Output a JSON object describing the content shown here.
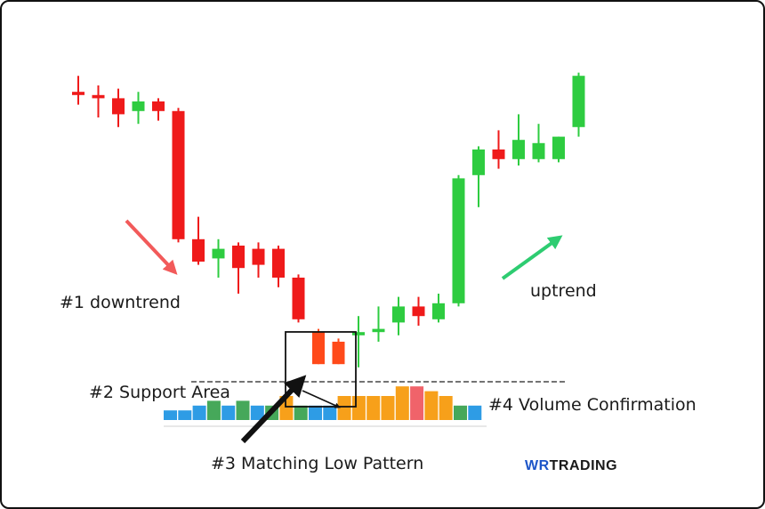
{
  "chart_data": {
    "type": "candlestick",
    "title": "",
    "xlabel": "",
    "ylabel": "",
    "ylim": [
      0,
      100
    ],
    "grid": false,
    "colors": {
      "bull": "#2ecc40",
      "bear": "#ef1a1a",
      "low_pattern": "#ff4a1a"
    },
    "candles": [
      {
        "o": 88,
        "h": 93,
        "l": 84,
        "c": 87
      },
      {
        "o": 87,
        "h": 90,
        "l": 80,
        "c": 86
      },
      {
        "o": 86,
        "h": 89,
        "l": 77,
        "c": 81
      },
      {
        "o": 82,
        "h": 88,
        "l": 78,
        "c": 85
      },
      {
        "o": 85,
        "h": 86,
        "l": 79,
        "c": 82
      },
      {
        "o": 82,
        "h": 83,
        "l": 41,
        "c": 42
      },
      {
        "o": 42,
        "h": 49,
        "l": 34,
        "c": 35
      },
      {
        "o": 36,
        "h": 42,
        "l": 30,
        "c": 39
      },
      {
        "o": 40,
        "h": 41,
        "l": 25,
        "c": 33
      },
      {
        "o": 39,
        "h": 41,
        "l": 30,
        "c": 34
      },
      {
        "o": 39,
        "h": 40,
        "l": 27,
        "c": 30
      },
      {
        "o": 30,
        "h": 31,
        "l": 16,
        "c": 17
      },
      {
        "o": 13,
        "h": 14,
        "l": 3,
        "c": 3
      },
      {
        "o": 10,
        "h": 11,
        "l": 3,
        "c": 3
      },
      {
        "o": 12,
        "h": 18,
        "l": 2,
        "c": 13
      },
      {
        "o": 13,
        "h": 21,
        "l": 10,
        "c": 14
      },
      {
        "o": 16,
        "h": 24,
        "l": 12,
        "c": 21
      },
      {
        "o": 21,
        "h": 24,
        "l": 15,
        "c": 18
      },
      {
        "o": 17,
        "h": 25,
        "l": 16,
        "c": 22
      },
      {
        "o": 22,
        "h": 62,
        "l": 21,
        "c": 61
      },
      {
        "o": 62,
        "h": 71,
        "l": 52,
        "c": 70
      },
      {
        "o": 70,
        "h": 76,
        "l": 64,
        "c": 67
      },
      {
        "o": 67,
        "h": 81,
        "l": 65,
        "c": 73
      },
      {
        "o": 67,
        "h": 78,
        "l": 66,
        "c": 72
      },
      {
        "o": 67,
        "h": 74,
        "l": 66,
        "c": 74
      },
      {
        "o": 77,
        "h": 94,
        "l": 74,
        "c": 93
      }
    ],
    "volume": [
      {
        "v": 2,
        "c": "#2e9ce5"
      },
      {
        "v": 2,
        "c": "#2e9ce5"
      },
      {
        "v": 3,
        "c": "#2e9ce5"
      },
      {
        "v": 4,
        "c": "#46a85a"
      },
      {
        "v": 3,
        "c": "#2e9ce5"
      },
      {
        "v": 4,
        "c": "#46a85a"
      },
      {
        "v": 3,
        "c": "#2e9ce5"
      },
      {
        "v": 3,
        "c": "#46a85a"
      },
      {
        "v": 5,
        "c": "#f7a01a"
      },
      {
        "v": 3,
        "c": "#46a85a"
      },
      {
        "v": 3,
        "c": "#2e9ce5"
      },
      {
        "v": 3,
        "c": "#2e9ce5"
      },
      {
        "v": 5,
        "c": "#f7a01a"
      },
      {
        "v": 5,
        "c": "#f7a01a"
      },
      {
        "v": 5,
        "c": "#f7a01a"
      },
      {
        "v": 5,
        "c": "#f7a01a"
      },
      {
        "v": 7,
        "c": "#f7a01a"
      },
      {
        "v": 7,
        "c": "#f0636a"
      },
      {
        "v": 6,
        "c": "#f7a01a"
      },
      {
        "v": 5,
        "c": "#f7a01a"
      },
      {
        "v": 3,
        "c": "#46a85a"
      },
      {
        "v": 3,
        "c": "#2e9ce5"
      }
    ]
  },
  "annotations": {
    "downtrend": "#1 downtrend",
    "support": "#2 Support Area",
    "pattern": "#3 Matching Low Pattern",
    "volume": "#4 Volume Confirmation",
    "uptrend": "uptrend"
  },
  "logo": {
    "part1": "WR",
    "part2": "TRADING"
  },
  "colors": {
    "down_arrow": "#f25a5a",
    "up_arrow": "#2ecc71",
    "pointer": "#111111"
  }
}
